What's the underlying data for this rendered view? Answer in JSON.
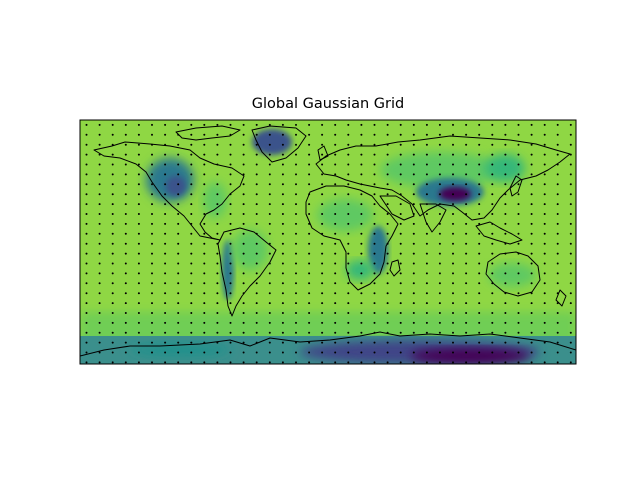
{
  "title": "Global Gaussian Grid",
  "map": {
    "projection": "PlateCarree",
    "extent": {
      "lon": [
        -180,
        180
      ],
      "lat": [
        -90,
        90
      ]
    },
    "colormap": [
      "#440154",
      "#3b528b",
      "#21918c",
      "#5ec962",
      "#8fd744"
    ],
    "field": "topography-shaded (low values green, high values purple)",
    "grid_points": {
      "lon_spacing_deg": 9.5,
      "lat_spacing_deg": 7.3,
      "marker_color": "#000000"
    },
    "coastlines": true
  }
}
